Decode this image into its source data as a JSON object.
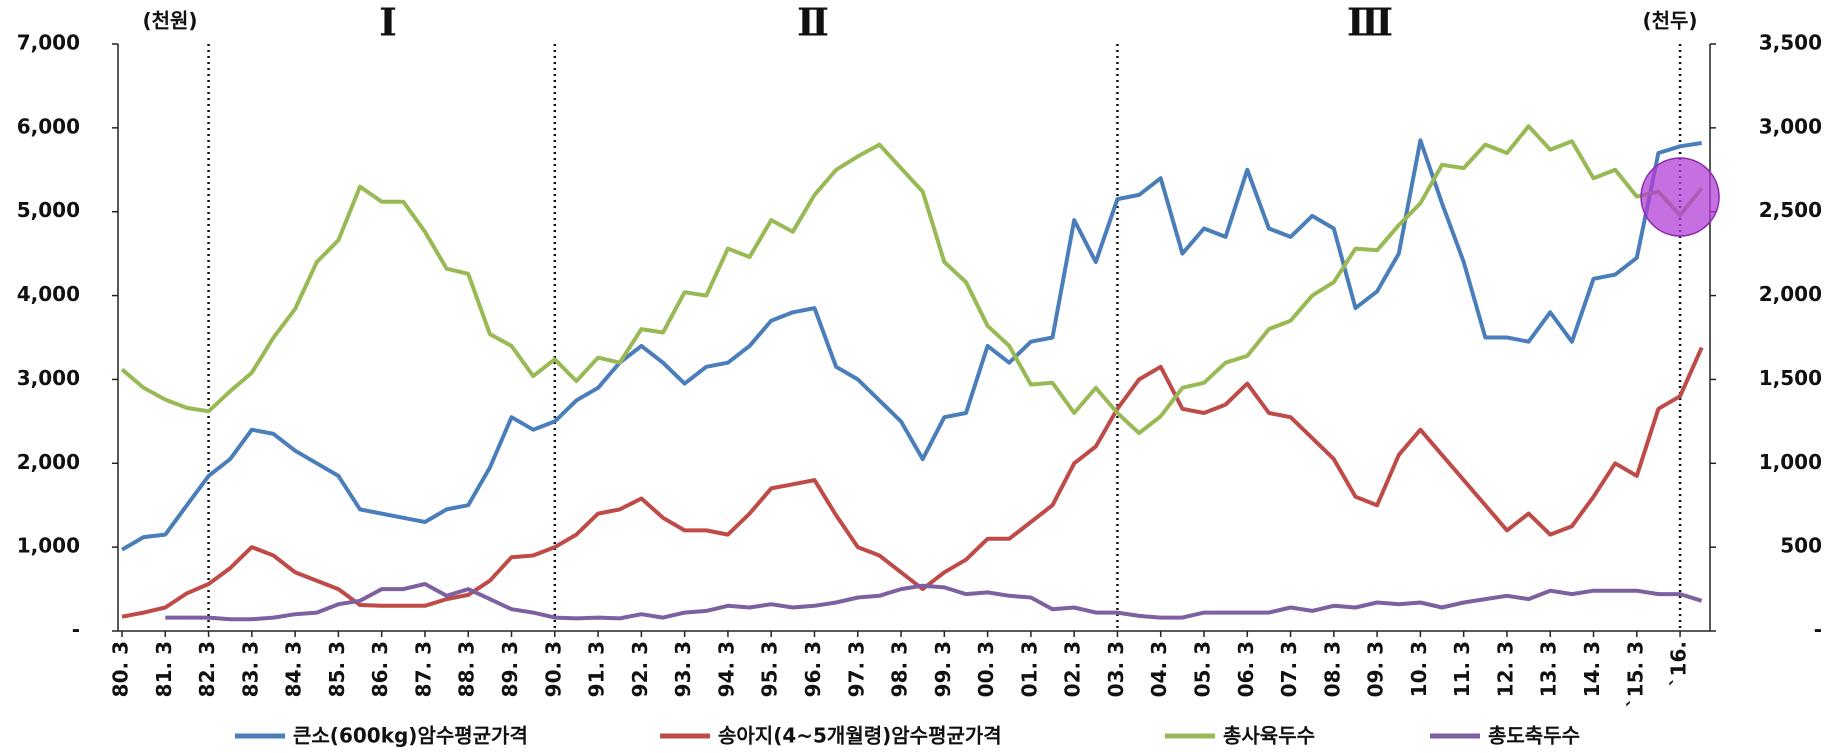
{
  "chart_data": {
    "type": "line",
    "annotations": {
      "left_unit": "(천원)",
      "right_unit": "(천두)",
      "periods": [
        "Ⅰ",
        "Ⅱ",
        "Ⅲ"
      ]
    },
    "period_lines": [
      "82. 3",
      "90. 3",
      "03. 3",
      "`16."
    ],
    "categories": [
      "80. 3",
      null,
      "81. 3",
      null,
      "82. 3",
      null,
      "83. 3",
      null,
      "84. 3",
      null,
      "85. 3",
      null,
      "86. 3",
      null,
      "87. 3",
      null,
      "88. 3",
      null,
      "89. 3",
      null,
      "90. 3",
      null,
      "91. 3",
      null,
      "92. 3",
      null,
      "93. 3",
      null,
      "94. 3",
      null,
      "95. 3",
      null,
      "96. 3",
      null,
      "97. 3",
      null,
      "98. 3",
      null,
      "99. 3",
      null,
      "00. 3",
      null,
      "01. 3",
      null,
      "02. 3",
      null,
      "03. 3",
      null,
      "04. 3",
      null,
      "05. 3",
      null,
      "06. 3",
      null,
      "07. 3",
      null,
      "08. 3",
      null,
      "09. 3",
      null,
      "10. 3",
      null,
      "11. 3",
      null,
      "12. 3",
      null,
      "13. 3",
      null,
      "14. 3",
      null,
      "`15. 3",
      null,
      "`16.",
      null
    ],
    "series": [
      {
        "name": "큰소(600kg)암수평균가격",
        "color": "#4a7ebb",
        "values": [
          970,
          1120,
          1150,
          1500,
          1850,
          2050,
          2400,
          2350,
          2150,
          2000,
          1850,
          1450,
          1400,
          1350,
          1300,
          1450,
          1500,
          1950,
          2550,
          2400,
          2500,
          2750,
          2900,
          3200,
          3400,
          3200,
          2950,
          3150,
          3200,
          3400,
          3700,
          3800,
          3850,
          3150,
          3000,
          2750,
          2500,
          2050,
          2550,
          2600,
          3400,
          3200,
          3450,
          3500,
          4900,
          4400,
          5150,
          5200,
          5400,
          4500,
          4800,
          4700,
          5500,
          4800,
          4700,
          4950,
          4800,
          3850,
          4050,
          4500,
          5850,
          5100,
          4400,
          3500,
          3500,
          3450,
          3800,
          3450,
          4200,
          4250,
          4450,
          5700,
          5780,
          5820
        ]
      },
      {
        "name": "송아지(4~5개월령)암수평균가격",
        "color": "#be4b48",
        "values": [
          170,
          220,
          280,
          450,
          560,
          750,
          1000,
          900,
          700,
          600,
          500,
          310,
          300,
          300,
          300,
          380,
          430,
          600,
          880,
          900,
          1000,
          1150,
          1400,
          1450,
          1580,
          1350,
          1200,
          1200,
          1150,
          1400,
          1700,
          1750,
          1800,
          1380,
          1000,
          900,
          700,
          500,
          700,
          850,
          1100,
          1100,
          1300,
          1500,
          2000,
          2200,
          2650,
          3000,
          3150,
          2650,
          2600,
          2700,
          2950,
          2600,
          2550,
          2300,
          2050,
          1600,
          1500,
          2100,
          2400,
          2100,
          1800,
          1500,
          1200,
          1400,
          1150,
          1250,
          1600,
          2000,
          1850,
          2650,
          2800,
          3380
        ]
      },
      {
        "name": "총사육두수",
        "color": "#98b954",
        "axis": "y2",
        "values": [
          1560,
          1450,
          1380,
          1330,
          1310,
          1430,
          1540,
          1750,
          1920,
          2200,
          2330,
          2650,
          2560,
          2560,
          2380,
          2160,
          2130,
          1770,
          1700,
          1520,
          1620,
          1490,
          1630,
          1600,
          1800,
          1780,
          2020,
          2000,
          2280,
          2230,
          2450,
          2380,
          2600,
          2750,
          2830,
          2900,
          2760,
          2620,
          2200,
          2080,
          1820,
          1700,
          1470,
          1480,
          1300,
          1450,
          1300,
          1180,
          1280,
          1450,
          1480,
          1600,
          1640,
          1800,
          1850,
          2000,
          2080,
          2280,
          2270,
          2420,
          2550,
          2780,
          2760,
          2900,
          2850,
          3010,
          2870,
          2920,
          2700,
          2750,
          2590,
          2620,
          2480,
          2640
        ]
      },
      {
        "name": "총도축두수",
        "color": "#7d60a0",
        "axis": "y2",
        "values": [
          null,
          null,
          80,
          80,
          80,
          70,
          70,
          80,
          100,
          110,
          160,
          180,
          250,
          250,
          280,
          210,
          250,
          190,
          130,
          110,
          80,
          75,
          80,
          75,
          100,
          80,
          110,
          120,
          150,
          140,
          160,
          140,
          150,
          170,
          200,
          210,
          250,
          270,
          260,
          220,
          230,
          210,
          200,
          130,
          140,
          110,
          110,
          90,
          80,
          80,
          110,
          110,
          110,
          110,
          140,
          120,
          150,
          140,
          170,
          160,
          170,
          140,
          170,
          190,
          210,
          190,
          240,
          220,
          240,
          240,
          240,
          220,
          220,
          180
        ]
      }
    ],
    "ylim": [
      0,
      7000
    ],
    "yticks": [
      {
        "value": 0,
        "label": "-"
      },
      {
        "value": 1000,
        "label": "1,000"
      },
      {
        "value": 2000,
        "label": "2,000"
      },
      {
        "value": 3000,
        "label": "3,000"
      },
      {
        "value": 4000,
        "label": "4,000"
      },
      {
        "value": 5000,
        "label": "5,000"
      },
      {
        "value": 6000,
        "label": "6,000"
      },
      {
        "value": 7000,
        "label": "7,000"
      }
    ],
    "y2lim": [
      0,
      3500
    ],
    "y2ticks": [
      {
        "value": 0,
        "label": "-"
      },
      500,
      {
        "value": 1000,
        "label": "1,000"
      },
      {
        "value": 1500,
        "label": "1,500"
      },
      {
        "value": 2000,
        "label": "2,000"
      },
      {
        "value": 2500,
        "label": "2,500"
      },
      {
        "value": 3000,
        "label": "3,000"
      },
      {
        "value": 3500,
        "label": "3,500"
      }
    ],
    "grid": false,
    "highlight_color": "#b13fd6"
  }
}
